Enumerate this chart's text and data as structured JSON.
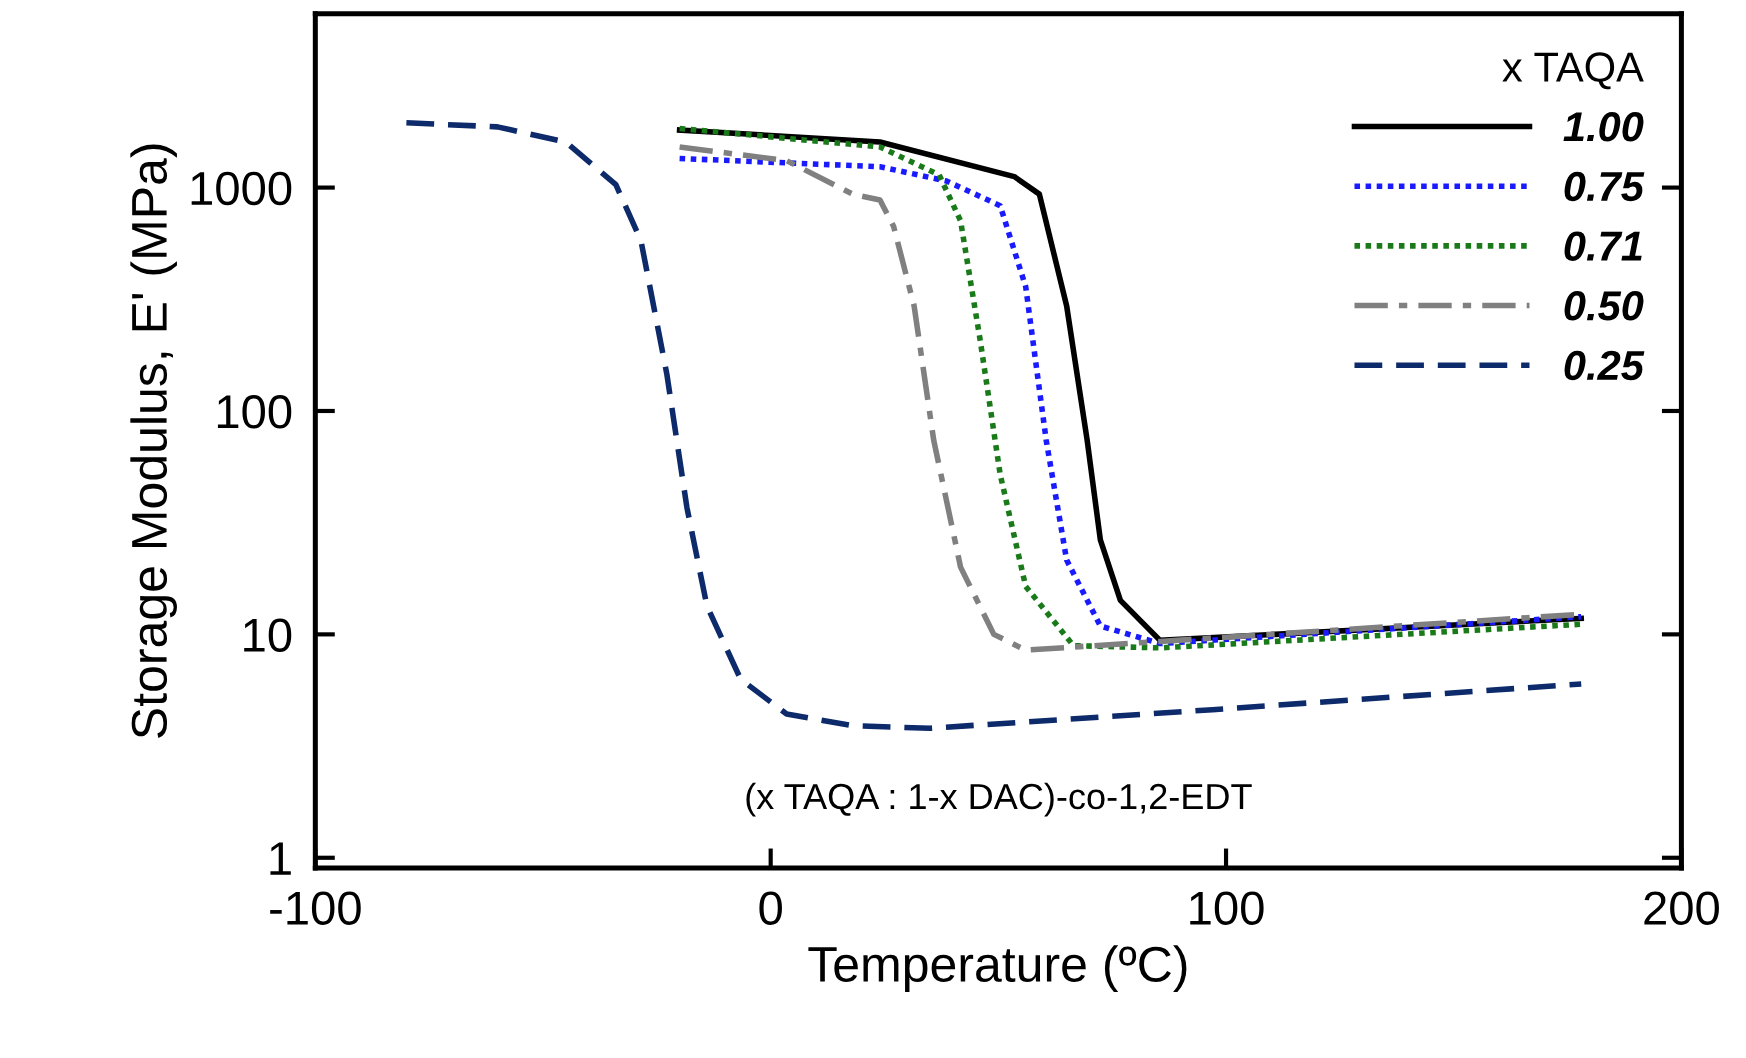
{
  "chart_data": {
    "type": "line",
    "xlabel": "Temperature (ºC)",
    "ylabel": "Storage Modulus, E' (MPa)",
    "legend_title": "x TAQA",
    "xlim": [
      -100,
      200
    ],
    "xticks": [
      -100,
      0,
      100,
      200
    ],
    "ylim": [
      0.9,
      6000
    ],
    "yticks": [
      1,
      10,
      100,
      1000
    ],
    "log": true,
    "grid": false,
    "legend": "top right",
    "annotations": [
      "(x TAQA : 1-x DAC)-co-1,2-EDT"
    ],
    "series": [
      {
        "name": "1.00",
        "color": "#000000",
        "line_style": "solid",
        "x": [
          -20,
          24,
          53.5,
          59,
          65,
          69.5,
          72.4,
          76.8,
          85.5,
          178
        ],
        "values": [
          1810,
          1600,
          1120,
          935,
          295,
          74,
          26.5,
          14.2,
          9.4,
          11.8
        ]
      },
      {
        "name": "0.75",
        "color": "#1a1aff",
        "line_style": "dotted",
        "x": [
          -20,
          24,
          38.6,
          50.4,
          56,
          60.5,
          65,
          72.4,
          85.5,
          178
        ],
        "values": [
          1350,
          1240,
          1070,
          830,
          360,
          74,
          21.5,
          10.9,
          9.1,
          12.0
        ]
      },
      {
        "name": "0.71",
        "color": "#1a7a1a",
        "line_style": "dotted",
        "x": [
          -20,
          24,
          37,
          41.7,
          46,
          50.4,
          56,
          66.5,
          85.5,
          178
        ],
        "values": [
          1840,
          1520,
          1140,
          710,
          208,
          52,
          16.4,
          8.9,
          8.7,
          11.1
        ]
      },
      {
        "name": "0.50",
        "color": "#808080",
        "line_style": "dashdot",
        "x": [
          -20,
          3.5,
          18,
          24,
          27,
          31.5,
          35.8,
          41.7,
          49,
          56,
          85.5,
          178
        ],
        "values": [
          1520,
          1320,
          935,
          880,
          670,
          295,
          74,
          20,
          10,
          8.5,
          9.3,
          12.3
        ]
      },
      {
        "name": "0.25",
        "color": "#0d2a6b",
        "line_style": "dashed",
        "x": [
          -80,
          -60,
          -45,
          -34,
          -28.5,
          -22.8,
          -18.4,
          -14,
          -6.6,
          3.5,
          18,
          35,
          97,
          178
        ],
        "values": [
          1950,
          1870,
          1600,
          1030,
          580,
          146,
          37,
          13.4,
          6.3,
          4.4,
          3.9,
          3.8,
          4.6,
          6.0
        ]
      }
    ]
  }
}
